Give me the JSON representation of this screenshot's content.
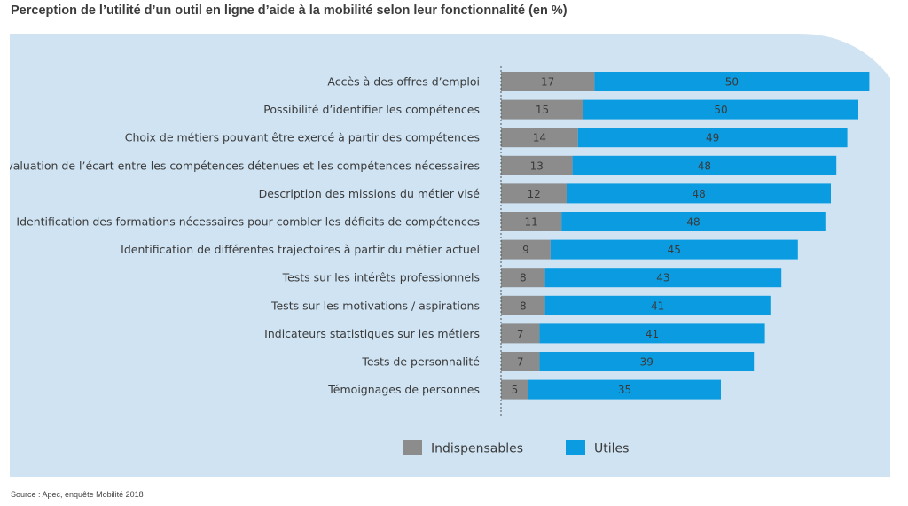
{
  "title": "Perception de l’utilité d’un outil en ligne d’aide à la mobilité selon leur fonctionnalité (en %)",
  "source": "Source : Apec, enquête Mobilité 2018",
  "colors": {
    "panel": "#cfe3f3",
    "indispensables": "#8c8c8c",
    "utiles": "#0a9be0",
    "axis": "#555555",
    "label": "#3a3a3a",
    "value": "#3a3a3a"
  },
  "chart_data": {
    "type": "bar",
    "orientation": "horizontal",
    "stacked": true,
    "categories": [
      "Accès à des offres d’emploi",
      "Possibilité d’identifier les compétences",
      "Choix de métiers  pouvant être exercé à partir des compétences",
      "Evaluation de l’écart entre les compétences détenues et les compétences nécessaires",
      "Description des missions du métier visé",
      "Identification des formations nécessaires pour combler les déficits de compétences",
      "Identification de différentes trajectoires à partir du métier actuel",
      "Tests sur les intérêts professionnels",
      "Tests sur les motivations / aspirations",
      "Indicateurs statistiques sur les métiers",
      "Tests de personnalité",
      "Témoignages de personnes"
    ],
    "series": [
      {
        "name": "Indispensables",
        "values": [
          17,
          15,
          14,
          13,
          12,
          11,
          9,
          8,
          8,
          7,
          7,
          5
        ]
      },
      {
        "name": "Utiles",
        "values": [
          50,
          50,
          49,
          48,
          48,
          48,
          45,
          43,
          41,
          41,
          39,
          35
        ]
      }
    ],
    "legend_position": "bottom"
  }
}
